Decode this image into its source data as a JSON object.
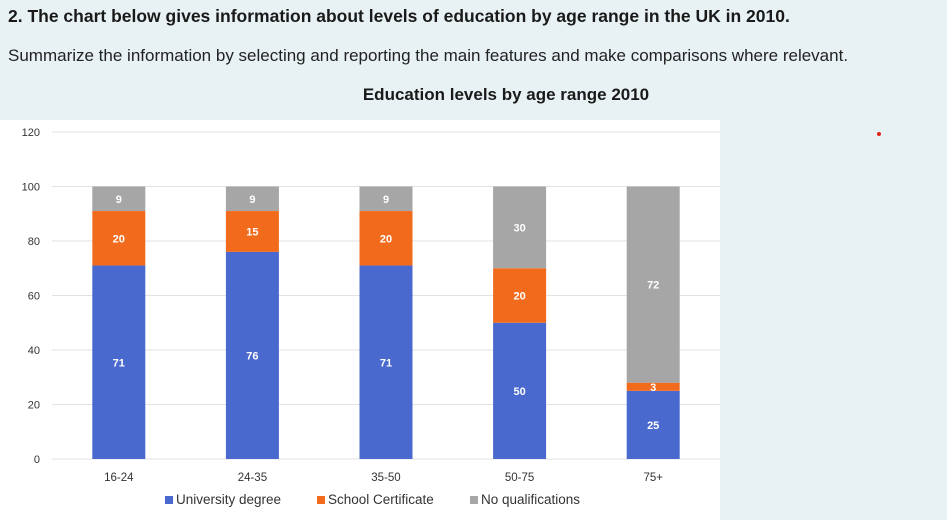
{
  "task": {
    "heading": "2. The chart below gives information about levels of education by age range in the UK in 2010.",
    "instructions": "Summarize the information by selecting and reporting the main features and make comparisons where relevant."
  },
  "colors": {
    "page_background": "#e8f2f4",
    "plot_background": "#ffffff",
    "university": "#4a69cf",
    "school": "#f26b1d",
    "none": "#a6a6a6",
    "dot": "#e0261b"
  },
  "chart_data": {
    "type": "bar",
    "stacked": true,
    "title": "Education levels by age range 2010",
    "xlabel": "",
    "ylabel": "",
    "categories": [
      "16-24",
      "24-35",
      "35-50",
      "50-75",
      "75+"
    ],
    "ylim": [
      0,
      120
    ],
    "yticks": [
      0,
      20,
      40,
      60,
      80,
      100,
      120
    ],
    "grid": true,
    "legend_position": "bottom",
    "series": [
      {
        "name": "University degree",
        "values": [
          71,
          76,
          71,
          50,
          25
        ],
        "color": "#4a69cf"
      },
      {
        "name": "School Certificate",
        "values": [
          20,
          15,
          20,
          20,
          3
        ],
        "color": "#f26b1d"
      },
      {
        "name": "No qualifications",
        "values": [
          9,
          9,
          9,
          30,
          72
        ],
        "color": "#a6a6a6"
      }
    ]
  }
}
